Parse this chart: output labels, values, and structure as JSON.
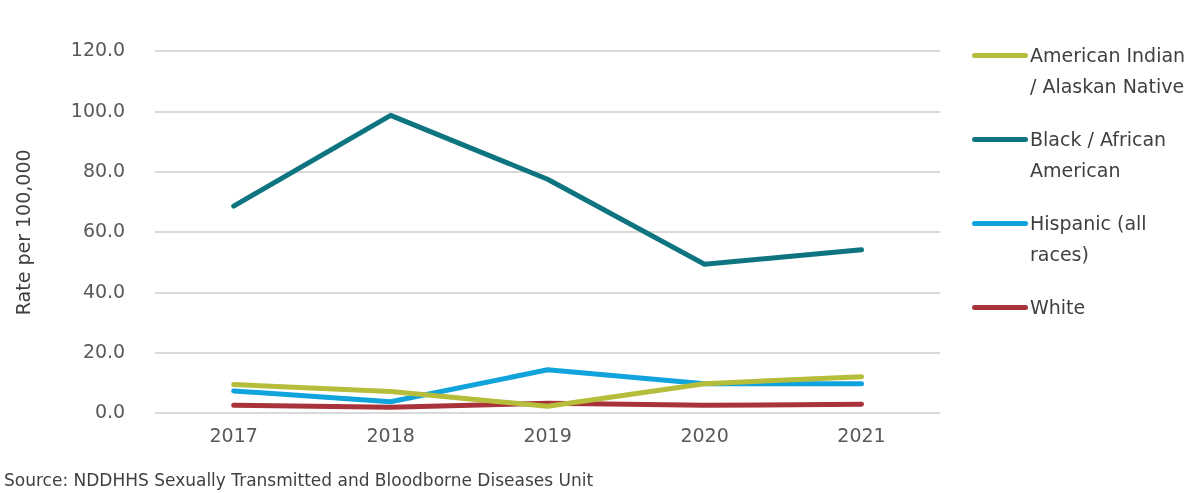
{
  "chart_data": {
    "type": "line",
    "ylabel": "Rate per 100,000",
    "categories": [
      "2017",
      "2018",
      "2019",
      "2020",
      "2021"
    ],
    "series": [
      {
        "name": "American Indian / Alaskan Native",
        "color": "#b5bd3a",
        "values": [
          9.5,
          7.2,
          2.3,
          9.8,
          12.1
        ]
      },
      {
        "name": "Black / African American",
        "color": "#0e7580",
        "values": [
          68.7,
          98.8,
          77.6,
          49.4,
          54.2
        ]
      },
      {
        "name": "Hispanic (all races)",
        "color": "#10a3dc",
        "values": [
          7.4,
          3.8,
          14.4,
          9.8,
          9.8
        ]
      },
      {
        "name": "White",
        "color": "#a8333a",
        "values": [
          2.6,
          2.0,
          3.3,
          2.6,
          3.0
        ]
      }
    ],
    "ylim": [
      0,
      120
    ],
    "yticks": [
      {
        "value": 0,
        "label": "0.0"
      },
      {
        "value": 20,
        "label": "20.0"
      },
      {
        "value": 40,
        "label": "40.0"
      },
      {
        "value": 60,
        "label": "60.0"
      },
      {
        "value": 80,
        "label": "80.0"
      },
      {
        "value": 100,
        "label": "100.0"
      },
      {
        "value": 120,
        "label": "120.0"
      }
    ],
    "grid": "y",
    "legend": "right",
    "marker": "none",
    "line_style": "solid",
    "annotations": [
      "Source: NDDHHS Sexually Transmitted and Bloodborne Diseases Unit"
    ]
  }
}
